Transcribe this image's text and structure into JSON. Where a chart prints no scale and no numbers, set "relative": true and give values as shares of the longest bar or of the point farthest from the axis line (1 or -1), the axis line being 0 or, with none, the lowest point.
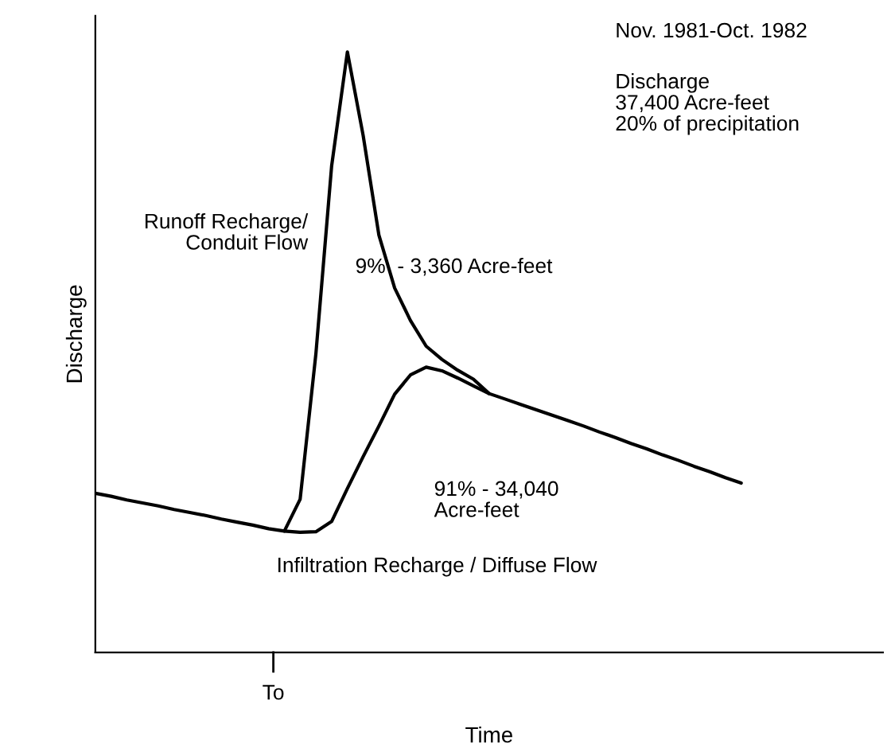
{
  "chart_data": {
    "type": "line",
    "relative": true,
    "xlabel": "Time",
    "ylabel": "Discharge",
    "categories": [
      null,
      null,
      null,
      null,
      null,
      null,
      null,
      null,
      null,
      null,
      null,
      null,
      null,
      null,
      null,
      null,
      null,
      null,
      null,
      null,
      null,
      null,
      null,
      null,
      null,
      null,
      null,
      null,
      null,
      null,
      null,
      null,
      null,
      null,
      null,
      null,
      null,
      null,
      null,
      null,
      null,
      null,
      null,
      null,
      null,
      null,
      null,
      null,
      null,
      null,
      null
    ],
    "annotations": [
      "To",
      "Runoff Recharge/\nConduit Flow",
      "9%  - 3,360 Acre-feet",
      "91% - 34,040\nAcre-feet",
      "Infiltration Recharge / Diffuse Flow",
      "Nov. 1981-Oct. 1982",
      "Discharge\n37,400 Acre-feet\n20% of precipitation"
    ],
    "legend": false,
    "marker": "none",
    "line_style": "solid",
    "series": [
      {
        "color": "#000000",
        "values": [
          0.265,
          0.26,
          0.254,
          0.249,
          0.244,
          0.238,
          0.233,
          0.228,
          0.222,
          0.217,
          0.212,
          0.206,
          0.202,
          0.2,
          0.201,
          0.218,
          0.273,
          0.326,
          0.377,
          0.43,
          0.462,
          0.475,
          0.469,
          0.457,
          0.444,
          0.431,
          0.422,
          0.413,
          0.404,
          0.395,
          0.386,
          0.377,
          0.367,
          0.358,
          0.348,
          0.339,
          0.329,
          0.32,
          0.31,
          0.301,
          0.291,
          0.282,
          null,
          null,
          null,
          null,
          null,
          null,
          null,
          null,
          null
        ]
      },
      {
        "color": "#000000",
        "values": [
          null,
          null,
          null,
          null,
          null,
          null,
          null,
          null,
          null,
          null,
          null,
          null,
          0.202,
          0.255,
          0.497,
          0.81,
          1.0,
          0.861,
          0.695,
          0.607,
          0.553,
          0.51,
          0.488,
          0.47,
          0.455,
          0.431,
          null,
          null,
          null,
          null,
          null,
          null,
          null,
          null,
          null,
          null,
          null,
          null,
          null,
          null,
          null,
          null,
          null,
          null,
          null,
          null,
          null,
          null,
          null,
          null,
          null
        ]
      }
    ]
  }
}
